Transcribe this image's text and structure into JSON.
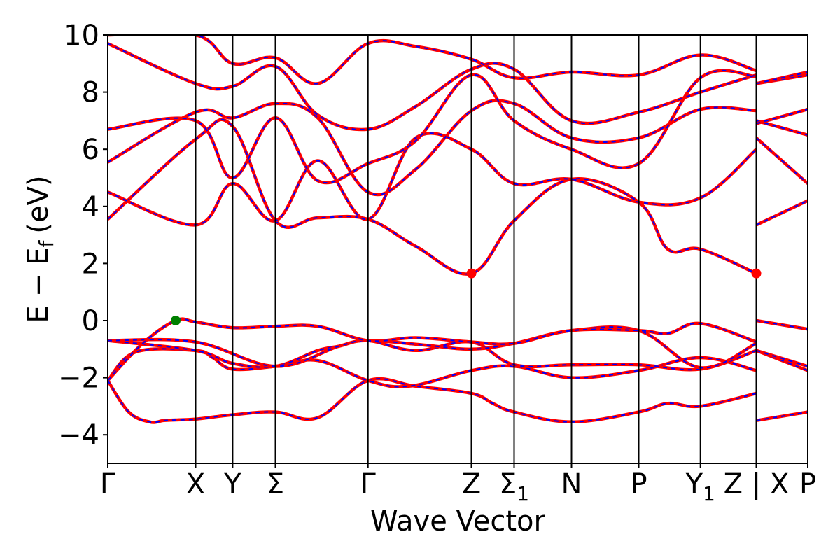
{
  "chart_data": {
    "type": "line",
    "title": "",
    "xlabel": "Wave Vector",
    "ylabel": "E − E_f (eV)",
    "ylabel_parts": {
      "e": "E",
      "minus": "−",
      "ef_base": "E",
      "ef_sub": "f",
      "unit": "(eV)"
    },
    "ylim": [
      -5,
      10
    ],
    "xlim": [
      0,
      1
    ],
    "y_ticks": [
      -4,
      -2,
      0,
      2,
      4,
      6,
      8,
      10
    ],
    "y_tick_labels": [
      "−4",
      "−2",
      "0",
      "2",
      "4",
      "6",
      "8",
      "10"
    ],
    "grid": false,
    "legend": "none",
    "k_points": [
      {
        "pos": 0.0,
        "label": "Γ"
      },
      {
        "pos": 0.1255,
        "label": "X"
      },
      {
        "pos": 0.1784,
        "label": "Y"
      },
      {
        "pos": 0.2395,
        "label": "Σ"
      },
      {
        "pos": 0.3717,
        "label": "Γ"
      },
      {
        "pos": 0.5195,
        "label": "Z"
      },
      {
        "pos": 0.5805,
        "label": "Σ",
        "sub": "1"
      },
      {
        "pos": 0.6625,
        "label": "N"
      },
      {
        "pos": 0.7585,
        "label": "P"
      },
      {
        "pos": 0.8467,
        "label": "Y",
        "sub": "1"
      },
      {
        "pos": 0.9265,
        "label": "Z | X"
      },
      {
        "pos": 1.0,
        "label": "P"
      }
    ],
    "band_colors": {
      "primary": "#ff0000",
      "dashed": "#0000ff"
    },
    "band_extrema": [
      {
        "name": "VBM",
        "x": 0.097,
        "y": 0.0,
        "color": "#008000"
      },
      {
        "name": "CBM",
        "x": 0.5195,
        "y": 1.65,
        "color": "#ff0000"
      },
      {
        "name": "CBM",
        "x": 0.9265,
        "y": 1.65,
        "color": "#ff0000"
      }
    ],
    "bands": [
      {
        "x": [
          0,
          0.03,
          0.06,
          0.08,
          0.097,
          0.1255,
          0.1784,
          0.2395,
          0.3,
          0.3717,
          0.44,
          0.5195,
          0.55,
          0.5805,
          0.6625,
          0.7585,
          0.8,
          0.8467,
          0.9265
        ],
        "y": [
          -2.1,
          -3.2,
          -3.55,
          -3.5,
          -3.48,
          -3.45,
          -3.3,
          -3.2,
          -3.4,
          -2.1,
          -2.3,
          -2.55,
          -2.9,
          -3.2,
          -3.55,
          -3.2,
          -2.9,
          -3.0,
          -2.55
        ]
      },
      {
        "x": [
          0.9265,
          1.0
        ],
        "y": [
          -3.5,
          -3.2
        ]
      },
      {
        "x": [
          0,
          0.04,
          0.1255,
          0.15,
          0.1784,
          0.2395,
          0.3,
          0.3717,
          0.43,
          0.5195,
          0.5805,
          0.6625,
          0.7585,
          0.8467,
          0.9265
        ],
        "y": [
          -2.1,
          -1.1,
          -1.05,
          -1.3,
          -1.7,
          -1.6,
          -1.4,
          -2.1,
          -2.3,
          -1.75,
          -1.6,
          -2.0,
          -1.75,
          -1.3,
          -1.75
        ]
      },
      {
        "x": [
          0.9265,
          1.0
        ],
        "y": [
          -1.05,
          -1.75
        ]
      },
      {
        "x": [
          0,
          0.1255,
          0.1784,
          0.2395,
          0.3,
          0.33,
          0.3717,
          0.44,
          0.5195,
          0.5805,
          0.6625,
          0.7585,
          0.8467,
          0.9265
        ],
        "y": [
          -0.7,
          -1.05,
          -1.5,
          -1.6,
          -1.05,
          -0.9,
          -0.7,
          -1.05,
          -0.75,
          -1.55,
          -1.55,
          -1.55,
          -1.7,
          -1.05
        ]
      },
      {
        "x": [
          0.9265,
          1.0
        ],
        "y": [
          -1.05,
          -1.6
        ]
      },
      {
        "x": [
          0,
          0.1255,
          0.2395,
          0.33,
          0.3717,
          0.45,
          0.5195,
          0.5805,
          0.6625,
          0.7585,
          0.8467,
          0.9265
        ],
        "y": [
          -0.7,
          -0.75,
          -1.6,
          -0.9,
          -0.7,
          -0.85,
          -1.0,
          -0.8,
          -0.35,
          -0.35,
          -1.65,
          -0.8
        ]
      },
      {
        "x": [
          0,
          0.05,
          0.097,
          0.1255,
          0.1784,
          0.2395,
          0.3,
          0.3717,
          0.44,
          0.5195,
          0.5805,
          0.6625,
          0.7585,
          0.8,
          0.8467,
          0.9265
        ],
        "y": [
          -2.1,
          -0.8,
          0.0,
          -0.05,
          -0.25,
          -0.2,
          -0.2,
          -0.7,
          -0.6,
          -0.75,
          -0.8,
          -0.35,
          -0.35,
          -0.45,
          -0.1,
          -0.75
        ]
      },
      {
        "x": [
          0.9265,
          1.0
        ],
        "y": [
          0.0,
          -0.3
        ]
      },
      {
        "x": [
          0,
          0.1255,
          0.1784,
          0.2395,
          0.3,
          0.3717,
          0.44,
          0.5195,
          0.5805,
          0.6625,
          0.7585,
          0.8,
          0.8467,
          0.9265
        ],
        "y": [
          3.55,
          6.35,
          6.8,
          3.5,
          3.6,
          3.55,
          2.6,
          1.65,
          3.5,
          4.95,
          4.15,
          2.5,
          2.5,
          1.65
        ]
      },
      {
        "x": [
          0.9265,
          1.0
        ],
        "y": [
          3.35,
          4.2
        ]
      },
      {
        "x": [
          0,
          0.1255,
          0.1784,
          0.2395,
          0.3,
          0.3717,
          0.44,
          0.5195,
          0.5805,
          0.6625,
          0.7585,
          0.8467,
          0.9265
        ],
        "y": [
          4.5,
          3.35,
          4.8,
          3.5,
          5.6,
          3.55,
          6.4,
          6.0,
          4.8,
          4.95,
          4.15,
          4.3,
          6.0
        ]
      },
      {
        "x": [
          0.9265,
          1.0
        ],
        "y": [
          6.4,
          4.8
        ]
      },
      {
        "x": [
          0,
          0.1255,
          0.1784,
          0.2395,
          0.3,
          0.3717,
          0.44,
          0.5195,
          0.5805,
          0.6625,
          0.7585,
          0.8467,
          0.9265
        ],
        "y": [
          5.55,
          7.3,
          7.1,
          7.6,
          7.1,
          4.5,
          5.3,
          7.35,
          7.6,
          6.4,
          6.4,
          7.4,
          7.35
        ]
      },
      {
        "x": [
          0.9265,
          1.0
        ],
        "y": [
          7.0,
          6.5
        ]
      },
      {
        "x": [
          0,
          0.1255,
          0.1784,
          0.2395,
          0.3,
          0.3717,
          0.44,
          0.5195,
          0.5805,
          0.6625,
          0.7585,
          0.8467,
          0.9265
        ],
        "y": [
          6.7,
          7.0,
          5.0,
          7.1,
          4.9,
          5.5,
          6.3,
          8.6,
          7.0,
          6.0,
          5.5,
          8.5,
          8.55
        ]
      },
      {
        "x": [
          0.9265,
          1.0
        ],
        "y": [
          6.9,
          7.4
        ]
      },
      {
        "x": [
          0,
          0.1255,
          0.1784,
          0.2395,
          0.3,
          0.3717,
          0.44,
          0.5195,
          0.5805,
          0.6625,
          0.7585,
          0.8467,
          0.9265
        ],
        "y": [
          9.7,
          8.3,
          8.2,
          8.9,
          7.2,
          6.7,
          7.5,
          8.8,
          8.8,
          7.0,
          7.3,
          8.0,
          8.6
        ]
      },
      {
        "x": [
          0.9265,
          1.0
        ],
        "y": [
          8.3,
          8.6
        ]
      },
      {
        "x": [
          0,
          0.1255,
          0.1784,
          0.2395,
          0.3,
          0.3717,
          0.44,
          0.5195,
          0.5805,
          0.6625,
          0.7585,
          0.8467,
          0.9265
        ],
        "y": [
          10.0,
          10.0,
          9.0,
          9.2,
          8.3,
          9.7,
          9.6,
          9.15,
          8.5,
          8.7,
          8.6,
          9.3,
          8.75
        ]
      },
      {
        "x": [
          0.9265,
          1.0
        ],
        "y": [
          8.3,
          8.7
        ]
      }
    ]
  }
}
